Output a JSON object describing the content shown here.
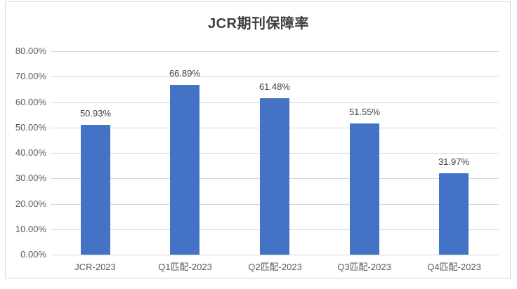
{
  "chart_data": {
    "type": "bar",
    "title": "JCR期刊保障率",
    "categories": [
      "JCR-2023",
      "Q1匹配-2023",
      "Q2匹配-2023",
      "Q3匹配-2023",
      "Q4匹配-2023"
    ],
    "values": [
      50.93,
      66.89,
      61.48,
      51.55,
      31.97
    ],
    "data_labels": [
      "50.93%",
      "66.89%",
      "61.48%",
      "51.55%",
      "31.97%"
    ],
    "xlabel": "",
    "ylabel": "",
    "ylim": [
      0,
      80
    ],
    "ytick_step": 10,
    "ytick_labels": [
      "0.00%",
      "10.00%",
      "20.00%",
      "30.00%",
      "40.00%",
      "50.00%",
      "60.00%",
      "70.00%",
      "80.00%"
    ],
    "grid": true,
    "legend": "none",
    "colors": {
      "bar": "#4472C4",
      "gridline": "#D9D9D9",
      "frame_border": "#D9D9D9",
      "axis_label": "#595959",
      "data_label": "#404040",
      "title": "#404040",
      "background": "#FFFFFF"
    }
  }
}
